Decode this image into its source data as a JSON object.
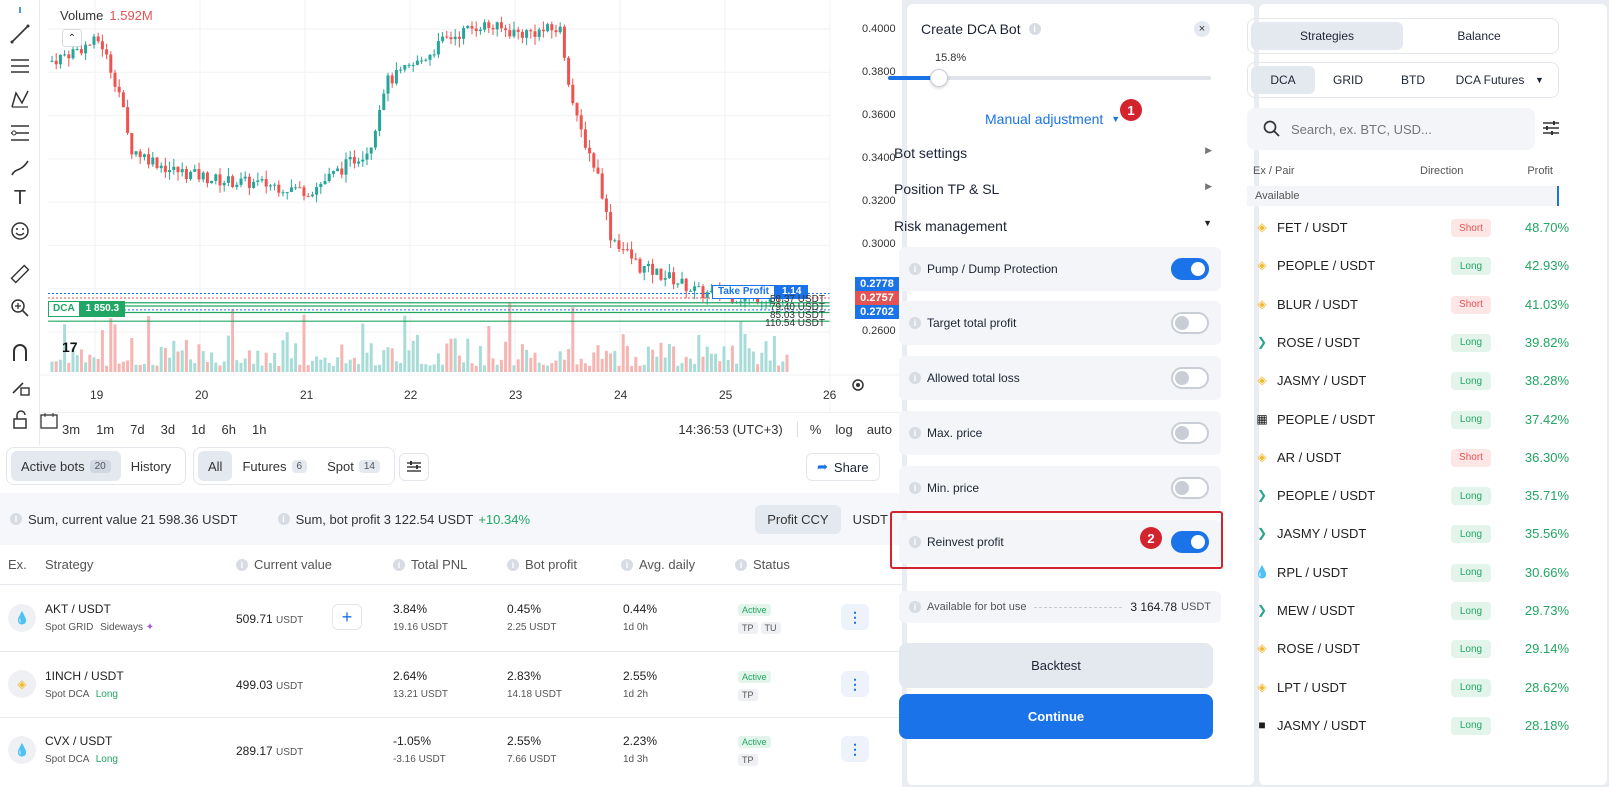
{
  "chart": {
    "volume_label": "Volume",
    "volume_value": "1.592M",
    "price_ticks": [
      "0.4000",
      "0.3800",
      "0.3600",
      "0.3400",
      "0.3200",
      "0.3000",
      "0.2600"
    ],
    "tags": {
      "p1": "0.2778",
      "p2": "0.2757",
      "p3": "0.2702"
    },
    "take_profit_label": "Take Profit",
    "take_profit_value": "1.14",
    "dca_label": "DCA",
    "dca_value": "1 850.3",
    "order_labels": [
      "58.37 USDT",
      "79.40 USDT",
      "85.03 USDT",
      "110.54 USDT"
    ],
    "day_ticks": [
      "19",
      "20",
      "21",
      "22",
      "23",
      "24",
      "25",
      "26"
    ],
    "timeframes": [
      "3m",
      "1m",
      "7d",
      "3d",
      "1d",
      "6h",
      "1h"
    ],
    "clock": "14:36:53 (UTC+3)",
    "scale_opts": [
      "%",
      "log",
      "auto"
    ]
  },
  "bots": {
    "tabs": [
      {
        "label": "Active bots",
        "count": "20"
      },
      {
        "label": "History",
        "count": ""
      }
    ],
    "filters": [
      {
        "label": "All",
        "count": ""
      },
      {
        "label": "Futures",
        "count": "6"
      },
      {
        "label": "Spot",
        "count": "14"
      }
    ],
    "share": "Share",
    "sum_current": "Sum, current value 21 598.36 USDT",
    "sum_profit": "Sum, bot profit 3 122.54 USDT",
    "sum_profit_pct": "+10.34%",
    "profit_ccy": "Profit CCY",
    "usdt": "USDT",
    "headers": [
      "Ex.",
      "Strategy",
      "Current value",
      "Total PNL",
      "Bot profit",
      "Avg. daily",
      "Status"
    ],
    "rows": [
      {
        "pair": "AKT / USDT",
        "type": "Spot GRID",
        "mode": "Sideways",
        "value": "509.71",
        "pnl_pct": "3.84%",
        "pnl_abs": "19.16 USDT",
        "bp_pct": "0.45%",
        "bp_abs": "2.25 USDT",
        "avg": "0.44%",
        "age": "1d 0h",
        "status": "Active",
        "tags": [
          "TP",
          "TU"
        ]
      },
      {
        "pair": "1INCH / USDT",
        "type": "Spot DCA",
        "mode": "Long",
        "value": "499.03",
        "pnl_pct": "2.64%",
        "pnl_abs": "13.21 USDT",
        "bp_pct": "2.83%",
        "bp_abs": "14.18 USDT",
        "avg": "2.55%",
        "age": "1d 2h",
        "status": "Active",
        "tags": [
          "TP"
        ]
      },
      {
        "pair": "CVX / USDT",
        "type": "Spot DCA",
        "mode": "Long",
        "value": "289.17",
        "pnl_pct": "-1.05%",
        "pnl_abs": "-3.16 USDT",
        "bp_pct": "2.55%",
        "bp_abs": "7.66 USDT",
        "avg": "2.23%",
        "age": "1d 3h",
        "status": "Active",
        "tags": [
          "TP"
        ]
      }
    ],
    "unit": "USDT"
  },
  "dca": {
    "title": "Create DCA Bot",
    "slider_value": "15.8%",
    "slider_fraction": 0.158,
    "manual_adjustment": "Manual adjustment",
    "sections": [
      "Bot settings",
      "Position TP & SL",
      "Risk management"
    ],
    "risk_rows": [
      {
        "label": "Pump / Dump Protection",
        "on": true
      },
      {
        "label": "Target total profit",
        "on": false
      },
      {
        "label": "Allowed total loss",
        "on": false
      },
      {
        "label": "Max. price",
        "on": false
      },
      {
        "label": "Min. price",
        "on": false
      },
      {
        "label": "Reinvest profit",
        "on": true
      }
    ],
    "available_label": "Available for bot use",
    "available_value": "3 164.78",
    "available_unit": "USDT",
    "backtest": "Backtest",
    "continue": "Continue",
    "badge1": "1",
    "badge2": "2"
  },
  "market": {
    "tabs": [
      "Strategies",
      "Balance"
    ],
    "types": [
      "DCA",
      "GRID",
      "BTD",
      "DCA Futures"
    ],
    "search_placeholder": "Search, ex. BTC, USD...",
    "headers": [
      "Ex / Pair",
      "Direction",
      "Profit"
    ],
    "available": "Available",
    "rows": [
      {
        "pair": "FET / USDT",
        "dir": "Short",
        "profit": "48.70%",
        "ex": "binance"
      },
      {
        "pair": "PEOPLE / USDT",
        "dir": "Long",
        "profit": "42.93%",
        "ex": "binance"
      },
      {
        "pair": "BLUR / USDT",
        "dir": "Short",
        "profit": "41.03%",
        "ex": "binance"
      },
      {
        "pair": "ROSE / USDT",
        "dir": "Long",
        "profit": "39.82%",
        "ex": "kucoin"
      },
      {
        "pair": "JASMY / USDT",
        "dir": "Long",
        "profit": "38.28%",
        "ex": "binance"
      },
      {
        "pair": "PEOPLE / USDT",
        "dir": "Long",
        "profit": "37.42%",
        "ex": "okx"
      },
      {
        "pair": "AR / USDT",
        "dir": "Short",
        "profit": "36.30%",
        "ex": "binance"
      },
      {
        "pair": "PEOPLE / USDT",
        "dir": "Long",
        "profit": "35.71%",
        "ex": "kucoin"
      },
      {
        "pair": "JASMY / USDT",
        "dir": "Long",
        "profit": "35.56%",
        "ex": "kucoin"
      },
      {
        "pair": "RPL / USDT",
        "dir": "Long",
        "profit": "30.66%",
        "ex": "huobi"
      },
      {
        "pair": "MEW / USDT",
        "dir": "Long",
        "profit": "29.73%",
        "ex": "kucoin"
      },
      {
        "pair": "ROSE / USDT",
        "dir": "Long",
        "profit": "29.14%",
        "ex": "binance"
      },
      {
        "pair": "LPT / USDT",
        "dir": "Long",
        "profit": "28.62%",
        "ex": "binance"
      },
      {
        "pair": "JASMY / USDT",
        "dir": "Long",
        "profit": "28.18%",
        "ex": "bybit"
      }
    ]
  },
  "colors": {
    "accent": "#1a73e8",
    "up": "#26a69a",
    "down": "#ef5350",
    "badge": "#d3232f"
  }
}
